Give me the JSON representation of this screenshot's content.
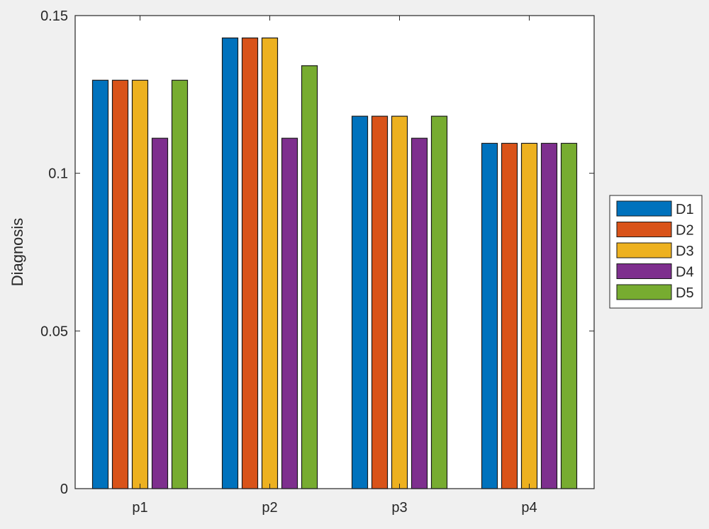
{
  "chart_data": {
    "type": "bar",
    "categories": [
      "p1",
      "p2",
      "p3",
      "p4"
    ],
    "series": [
      {
        "name": "D1",
        "color": "#0072BD",
        "values": [
          0.1295,
          0.1429,
          0.1181,
          0.1095
        ]
      },
      {
        "name": "D2",
        "color": "#D95319",
        "values": [
          0.1295,
          0.1429,
          0.1181,
          0.1095
        ]
      },
      {
        "name": "D3",
        "color": "#EDB120",
        "values": [
          0.1295,
          0.1429,
          0.1181,
          0.1095
        ]
      },
      {
        "name": "D4",
        "color": "#7E2F8E",
        "values": [
          0.1111,
          0.1111,
          0.1111,
          0.1095
        ]
      },
      {
        "name": "D5",
        "color": "#77AC30",
        "values": [
          0.1295,
          0.1341,
          0.1181,
          0.1095
        ]
      }
    ],
    "xlabel": "",
    "ylabel": "Diagnosis",
    "ylim": [
      0,
      0.15
    ],
    "yticks": [
      0,
      0.05,
      0.1,
      0.15
    ],
    "ytick_labels": [
      "0",
      "0.05",
      "0.1",
      "0.15"
    ],
    "grid": false,
    "legend_position": "outside-right"
  }
}
